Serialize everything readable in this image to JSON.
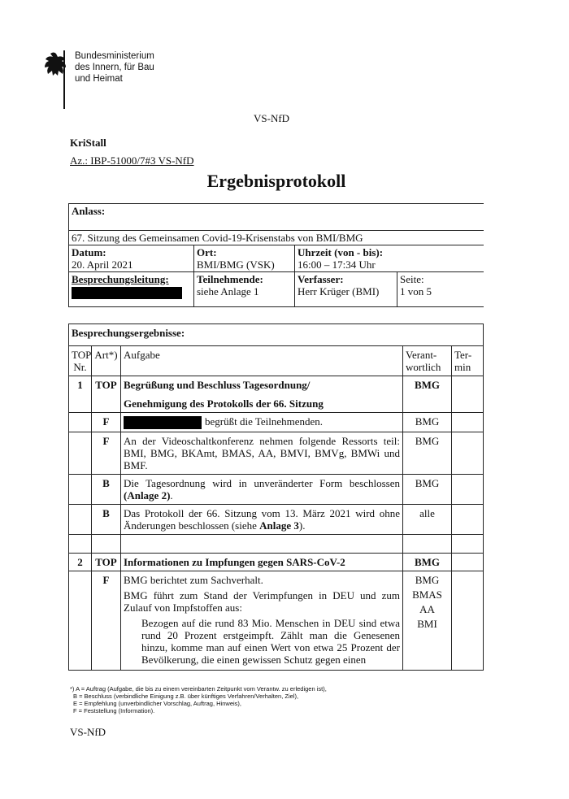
{
  "header": {
    "ministry": [
      "Bundesministerium",
      "des Innern, für Bau",
      "und Heimat"
    ],
    "classification": "VS-NfD",
    "kristall": "KriStall",
    "reference": "Az.: IBP-51000/7#3 VS-NfD",
    "title": "Ergebnisprotokoll"
  },
  "info": {
    "anlass_label": "Anlass:",
    "anlass": "67. Sitzung des Gemeinsamen Covid-19-Krisenstabs von BMI/BMG",
    "datum_label": "Datum:",
    "datum": "20. April 2021",
    "ort_label": "Ort:",
    "ort": "BMI/BMG (VSK)",
    "uhrzeit_label": "Uhrzeit (von - bis):",
    "uhrzeit": "16:00 – 17:34 Uhr",
    "leitung_label": "Besprechungsleitung:",
    "teilnehmende_label": "Teilnehmende:",
    "teilnehmende": "siehe Anlage 1",
    "verfasser_label": "Verfasser:",
    "verfasser": "Herr Krüger (BMI)",
    "seite_label": "Seite:",
    "seite": "1 von 5"
  },
  "results": {
    "heading": "Besprechungsergebnisse:",
    "columns": [
      "TOP Nr.",
      "Art*)",
      "Aufgabe",
      "Verant-wortlich",
      "Ter-min"
    ],
    "rows": [
      {
        "top": "1",
        "art": "TOP",
        "bold": true,
        "paragraphs": [
          [
            {
              "text": "Begrüßung und Beschluss Tagesordnung/"
            }
          ],
          [
            {
              "text": "Genehmigung des Protokolls der 66. Sitzung"
            }
          ]
        ],
        "responsible": [
          "BMG"
        ]
      },
      {
        "art": "F",
        "redacted": true,
        "paragraphs": [
          [
            {
              "text": "begrüßt die Teilnehmenden."
            }
          ]
        ],
        "responsible": [
          "BMG"
        ]
      },
      {
        "art": "F",
        "paragraphs": [
          [
            {
              "text": "An der Videoschaltkonferenz nehmen folgende Ressorts teil: BMI, BMG, BKAmt, BMAS, AA, BMVI, BMVg, BMWi und BMF."
            }
          ]
        ],
        "responsible": [
          "BMG"
        ]
      },
      {
        "art": "B",
        "paragraphs": [
          [
            {
              "text": "Die Tagesordnung wird in unveränderter Form beschlossen "
            },
            {
              "text": "(Anlage 2)",
              "bold": true
            },
            {
              "text": "."
            }
          ]
        ],
        "responsible": [
          "BMG"
        ]
      },
      {
        "art": "B",
        "paragraphs": [
          [
            {
              "text": "Das Protokoll der 66. Sitzung vom 13. März 2021 wird ohne Änderungen beschlossen (siehe "
            },
            {
              "text": "Anlage 3",
              "bold": true
            },
            {
              "text": ")."
            }
          ]
        ],
        "responsible": [
          "alle"
        ]
      },
      {
        "top": "2",
        "art": "TOP",
        "bold": true,
        "paragraphs": [
          [
            {
              "text": "Informationen zu Impfungen gegen SARS-CoV-2"
            }
          ]
        ],
        "responsible": [
          "BMG"
        ]
      },
      {
        "art": "F",
        "paragraphs": [
          [
            {
              "text": "BMG berichtet zum Sachverhalt."
            }
          ],
          [
            {
              "text": "BMG führt zum Stand der Verimpfungen in DEU und zum Zulauf von Impfstoffen aus:"
            }
          ]
        ],
        "bullets": [
          "Bezogen auf die rund 83 Mio. Menschen in DEU sind etwa rund 20 Prozent erstgeimpft. Zählt man die Genesenen hinzu, komme man auf einen Wert von etwa 25 Prozent der Bevölkerung, die einen gewissen Schutz gegen einen"
        ],
        "responsible": [
          "BMG",
          "BMAS",
          "AA",
          "BMI"
        ]
      }
    ]
  },
  "footnotes": [
    "*) A = Auftrag (Aufgabe, die bis zu einem vereinbarten Zeitpunkt vom Verantw. zu erledigen ist),",
    "B = Beschluss (verbindliche Einigung z.B. über künftiges Verfahren/Verhalten, Ziel),",
    "E = Empfehlung (unverbindlicher Vorschlag, Auftrag, Hinweis),",
    "F = Feststellung (Information)."
  ],
  "footer": "VS-NfD"
}
